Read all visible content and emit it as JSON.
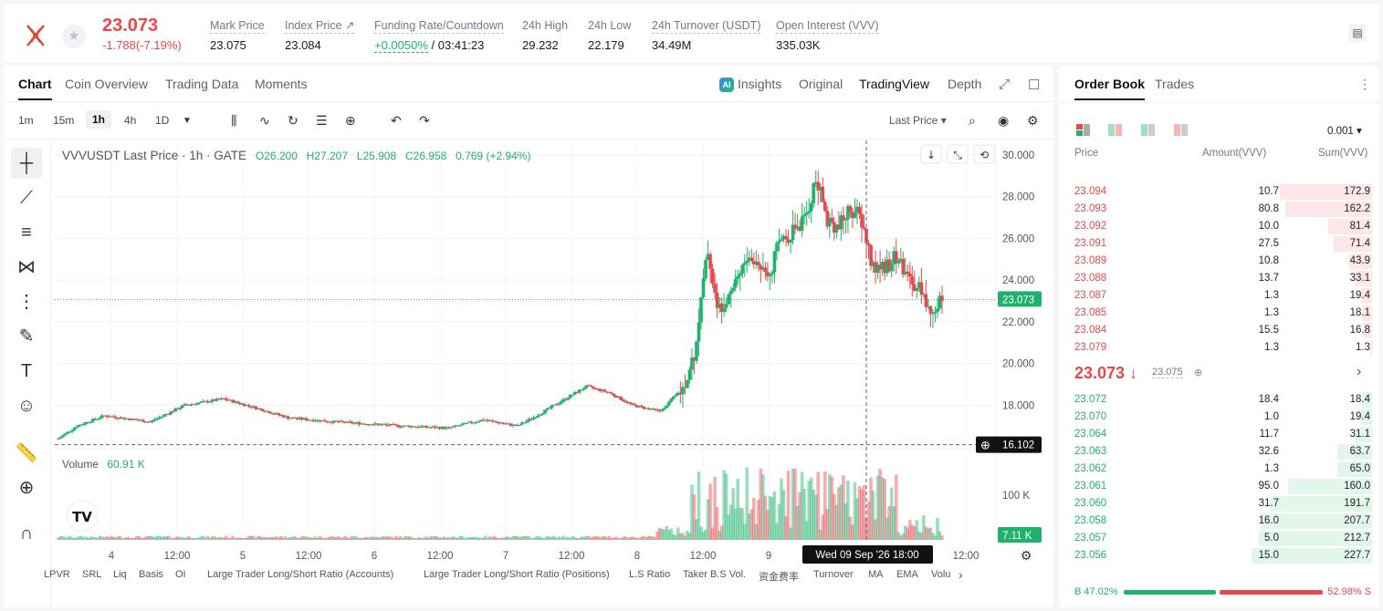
{
  "ticker": {
    "price": "23.073",
    "change": "-1.788(-7.19%)"
  },
  "stats": [
    {
      "label": "Mark Price",
      "value": "23.075"
    },
    {
      "label": "Index Price ↗",
      "value": "23.084"
    },
    {
      "label": "Funding Rate/Countdown",
      "value_rate": "+0.0050%",
      "value_cd": "/ 03:41:23"
    },
    {
      "label": "24h High",
      "value": "29.232"
    },
    {
      "label": "24h Low",
      "value": "22.179"
    },
    {
      "label": "24h Turnover (USDT)",
      "value": "34.49M"
    },
    {
      "label": "Open Interest (VVV)",
      "value": "335.03K"
    }
  ],
  "chart_tabs": [
    "Chart",
    "Coin Overview",
    "Trading Data",
    "Moments"
  ],
  "chart_right_tabs": {
    "insights": "Insights",
    "original": "Original",
    "tradingview": "TradingView",
    "depth": "Depth"
  },
  "timeframes": [
    "1m",
    "15m",
    "1h",
    "4h",
    "1D"
  ],
  "active_timeframe": "1h",
  "last_price_select": "Last Price ▾",
  "legend": {
    "symbol": "VVVUSDT Last Price · 1h · GATE",
    "o": "O26.200",
    "h": "H27.207",
    "l": "L25.908",
    "c": "C26.958",
    "chg": "0.769 (+2.94%)"
  },
  "volume_legend": {
    "label": "Volume",
    "value": "60.91 K"
  },
  "price_axis": [
    "30.000",
    "28.000",
    "26.000",
    "24.000",
    "22.000",
    "20.000",
    "18.000"
  ],
  "current_price_tag": "23.073",
  "crosshair_price_tag": "16.102",
  "volume_axis": [
    "100 K"
  ],
  "volume_tag": "7.11 K",
  "time_axis": [
    "4",
    "12:00",
    "5",
    "12:00",
    "6",
    "12:00",
    "7",
    "12:00",
    "8",
    "12:00",
    "9",
    "12:00"
  ],
  "crosshair_time": "Wed 09 Sep '26   18:00",
  "bottom_indicators": [
    "LPVR",
    "SRL",
    "Liq",
    "Basis",
    "OI",
    "Large Trader Long/Short Ratio (Accounts)",
    "Large Trader Long/Short Ratio (Positions)",
    "L.S Ratio",
    "Taker B.S Vol.",
    "资金费率",
    "Turnover",
    "MA",
    "EMA",
    "Volu"
  ],
  "orderbook": {
    "tabs": [
      "Order Book",
      "Trades"
    ],
    "precision": "0.001 ▾",
    "headers": {
      "price": "Price",
      "amount": "Amount(VVV)",
      "sum": "Sum(VVV)"
    },
    "asks": [
      {
        "p": "23.094",
        "a": "10.7",
        "s": "172.9",
        "d": 0.48
      },
      {
        "p": "23.093",
        "a": "80.8",
        "s": "162.2",
        "d": 0.45
      },
      {
        "p": "23.092",
        "a": "10.0",
        "s": "81.4",
        "d": 0.23
      },
      {
        "p": "23.091",
        "a": "27.5",
        "s": "71.4",
        "d": 0.2
      },
      {
        "p": "23.089",
        "a": "10.8",
        "s": "43.9",
        "d": 0.12
      },
      {
        "p": "23.088",
        "a": "13.7",
        "s": "33.1",
        "d": 0.09
      },
      {
        "p": "23.087",
        "a": "1.3",
        "s": "19.4",
        "d": 0.055
      },
      {
        "p": "23.085",
        "a": "1.3",
        "s": "18.1",
        "d": 0.05
      },
      {
        "p": "23.084",
        "a": "15.5",
        "s": "16.8",
        "d": 0.047
      },
      {
        "p": "23.079",
        "a": "1.3",
        "s": "1.3",
        "d": 0.01
      }
    ],
    "mid_price": "23.073 ↓",
    "mark": "23.075",
    "bids": [
      {
        "p": "23.072",
        "a": "18.4",
        "s": "18.4",
        "d": 0.05
      },
      {
        "p": "23.070",
        "a": "1.0",
        "s": "19.4",
        "d": 0.055
      },
      {
        "p": "23.064",
        "a": "11.7",
        "s": "31.1",
        "d": 0.09
      },
      {
        "p": "23.063",
        "a": "32.6",
        "s": "63.7",
        "d": 0.18
      },
      {
        "p": "23.062",
        "a": "1.3",
        "s": "65.0",
        "d": 0.18
      },
      {
        "p": "23.061",
        "a": "95.0",
        "s": "160.0",
        "d": 0.44
      },
      {
        "p": "23.060",
        "a": "31.7",
        "s": "191.7",
        "d": 0.53
      },
      {
        "p": "23.058",
        "a": "16.0",
        "s": "207.7",
        "d": 0.58
      },
      {
        "p": "23.057",
        "a": "5.0",
        "s": "212.7",
        "d": 0.59
      },
      {
        "p": "23.056",
        "a": "15.0",
        "s": "227.7",
        "d": 0.63
      }
    ],
    "buy_ratio": "B 47.02%",
    "sell_ratio": "52.98% S",
    "buy_fraction": 0.4702
  },
  "colors": {
    "up": "#20b26c",
    "down": "#e5484d"
  }
}
